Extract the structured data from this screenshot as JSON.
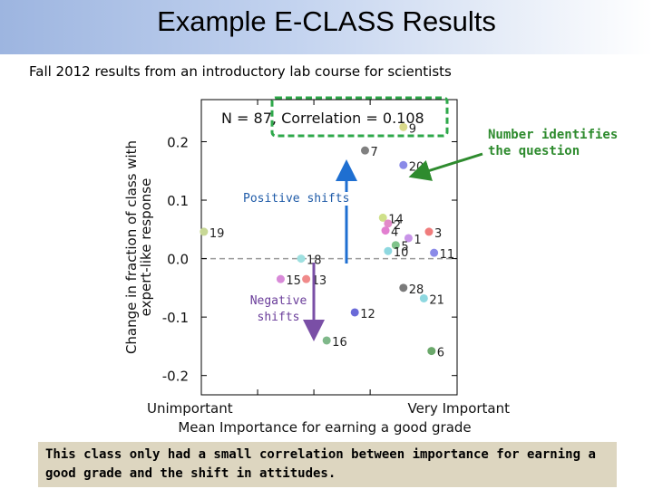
{
  "slide": {
    "title": "Example E-CLASS Results",
    "subtitle": "Fall 2012 results from an introductory lab course for scientists"
  },
  "annotations": {
    "callout": "Number identifies the question",
    "positive_shifts": "Positive shifts",
    "negative_shifts": "Negative shifts",
    "conclusion": "This class only had a small correlation between importance for earning a good grade and the shift in attitudes."
  },
  "colors": {
    "callout_green": "#2e8b2e",
    "positive_arrow": "#1f6fd1",
    "negative_arrow": "#7a4fa6",
    "highlight_box": "#2ea84a",
    "conclusion_bg": "#ddd6c0"
  },
  "chart_data": {
    "type": "scatter",
    "stats_text": "N = 87, Correlation = 0.108",
    "xlabel": "Mean Importance for earning a good grade",
    "ylabel_line1": "Change in fraction of class with",
    "ylabel_line2": "expert-like response",
    "x_tick_labels": [
      "Unimportant",
      "Very Important"
    ],
    "y_ticks": [
      0.2,
      0.1,
      0.0,
      -0.1,
      -0.2
    ],
    "y_tick_labels": [
      "0.2",
      "0.1",
      "0.0",
      "-0.1",
      "-0.2"
    ],
    "xlim": [
      0,
      1
    ],
    "ylim": [
      -0.233,
      0.272
    ],
    "reference_line_y": 0.0,
    "grid": false,
    "points": [
      {
        "label": "9",
        "x": 0.79,
        "y": 0.225,
        "color": "#d9d98a"
      },
      {
        "label": "7",
        "x": 0.64,
        "y": 0.185,
        "color": "#808080"
      },
      {
        "label": "20",
        "x": 0.79,
        "y": 0.16,
        "color": "#8a8ae8"
      },
      {
        "label": "19",
        "x": 0.01,
        "y": 0.046,
        "color": "#c8d896"
      },
      {
        "label": "14",
        "x": 0.71,
        "y": 0.07,
        "color": "#cfe08a"
      },
      {
        "label": "2",
        "x": 0.73,
        "y": 0.06,
        "color": "#e28ac8"
      },
      {
        "label": "4",
        "x": 0.72,
        "y": 0.048,
        "color": "#e27fd0"
      },
      {
        "label": "1",
        "x": 0.81,
        "y": 0.035,
        "color": "#c894e8"
      },
      {
        "label": "3",
        "x": 0.89,
        "y": 0.046,
        "color": "#f07c7c"
      },
      {
        "label": "5",
        "x": 0.76,
        "y": 0.023,
        "color": "#7fc48a"
      },
      {
        "label": "10",
        "x": 0.73,
        "y": 0.013,
        "color": "#8ed8e0"
      },
      {
        "label": "11",
        "x": 0.91,
        "y": 0.01,
        "color": "#8a8ae8"
      },
      {
        "label": "18",
        "x": 0.39,
        "y": 0.0,
        "color": "#9ee0e0"
      },
      {
        "label": "15",
        "x": 0.31,
        "y": -0.035,
        "color": "#d88ad8"
      },
      {
        "label": "13",
        "x": 0.41,
        "y": -0.035,
        "color": "#f08a8a"
      },
      {
        "label": "28",
        "x": 0.79,
        "y": -0.05,
        "color": "#7a7a7a"
      },
      {
        "label": "21",
        "x": 0.87,
        "y": -0.068,
        "color": "#8ed8e0"
      },
      {
        "label": "12",
        "x": 0.6,
        "y": -0.092,
        "color": "#6a6ad8"
      },
      {
        "label": "16",
        "x": 0.49,
        "y": -0.14,
        "color": "#7fb88a"
      },
      {
        "label": "6",
        "x": 0.9,
        "y": -0.158,
        "color": "#6aa86a"
      }
    ]
  }
}
